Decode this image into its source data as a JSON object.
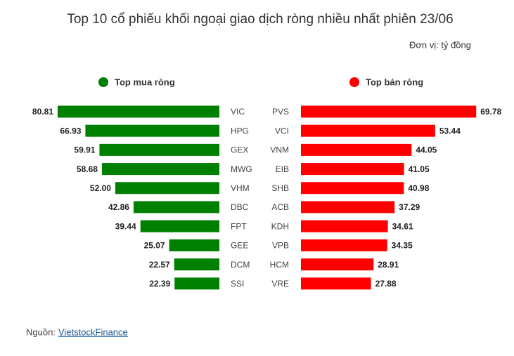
{
  "title": "Top 10 cổ phiếu khối ngoại giao dịch ròng nhiều nhất phiên 23/06",
  "subtitle": "Đơn vị: tỷ đồng",
  "source": {
    "label": "Nguồn:",
    "link": "VietstockFinance"
  },
  "chart_data": [
    {
      "type": "bar",
      "direction": "left",
      "categories": [
        "VIC",
        "HPG",
        "GEX",
        "MWG",
        "VHM",
        "DBC",
        "FPT",
        "GEE",
        "DCM",
        "SSI"
      ],
      "series": [
        {
          "name": "Top mua ròng",
          "color": "#008000",
          "values": [
            80.81,
            66.93,
            59.91,
            58.68,
            52,
            42.86,
            39.44,
            25.07,
            22.57,
            22.39
          ],
          "value_labels": [
            "80.81",
            "66.93",
            "59.91",
            "58.68",
            "52.00",
            "42.86",
            "39.44",
            "25.07",
            "22.57",
            "22.39"
          ]
        }
      ],
      "xlim": [
        0,
        85
      ]
    },
    {
      "type": "bar",
      "direction": "right",
      "categories": [
        "PVS",
        "VCI",
        "VNM",
        "EIB",
        "SHB",
        "ACB",
        "KDH",
        "VPB",
        "HCM",
        "VRE"
      ],
      "series": [
        {
          "name": "Top bán ròng",
          "color": "#ff0000",
          "values": [
            69.78,
            53.44,
            44.05,
            41.05,
            40.98,
            37.29,
            34.61,
            34.35,
            28.91,
            27.88
          ],
          "value_labels": [
            "69.78",
            "53.44",
            "44.05",
            "41.05",
            "40.98",
            "37.29",
            "34.61",
            "34.35",
            "28.91",
            "27.88"
          ]
        }
      ],
      "xlim": [
        0,
        70
      ]
    }
  ]
}
